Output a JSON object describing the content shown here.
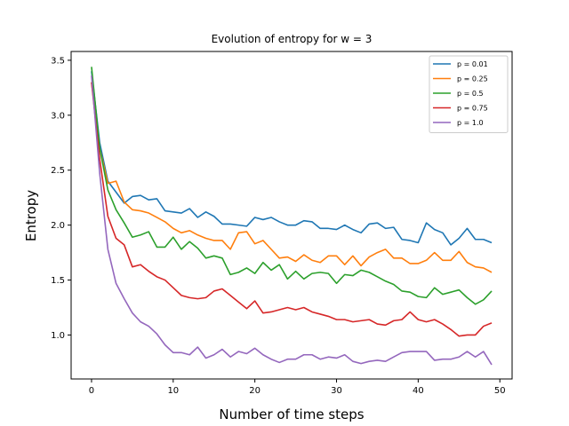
{
  "chart_data": {
    "type": "line",
    "title": "Evolution of entropy for w = 3",
    "xlabel": "Number of time steps",
    "ylabel": "Entropy",
    "xlim": [
      -2.5,
      51.5
    ],
    "ylim": [
      0.6,
      3.58
    ],
    "xticks": [
      0,
      10,
      20,
      30,
      40,
      50
    ],
    "yticks": [
      1.0,
      1.5,
      2.0,
      2.5,
      3.0,
      3.5
    ],
    "grid": false,
    "legend_placement": "top-right",
    "x": [
      0,
      1,
      2,
      3,
      4,
      5,
      6,
      7,
      8,
      9,
      10,
      11,
      12,
      13,
      14,
      15,
      16,
      17,
      18,
      19,
      20,
      21,
      22,
      23,
      24,
      25,
      26,
      27,
      28,
      29,
      30,
      31,
      32,
      33,
      34,
      35,
      36,
      37,
      38,
      39,
      40,
      41,
      42,
      43,
      44,
      45,
      46,
      47,
      48,
      49
    ],
    "series": [
      {
        "name": "p = 0.01",
        "color": "#1f77b4",
        "values": [
          3.4,
          2.75,
          2.4,
          2.3,
          2.2,
          2.26,
          2.27,
          2.23,
          2.24,
          2.13,
          2.12,
          2.11,
          2.15,
          2.07,
          2.12,
          2.08,
          2.01,
          2.01,
          2.0,
          1.99,
          2.07,
          2.05,
          2.07,
          2.03,
          2.0,
          2.0,
          2.04,
          2.03,
          1.97,
          1.97,
          1.96,
          2.0,
          1.96,
          1.93,
          2.01,
          2.02,
          1.97,
          1.98,
          1.87,
          1.86,
          1.84,
          2.02,
          1.96,
          1.93,
          1.82,
          1.88,
          1.97,
          1.87,
          1.87,
          1.84
        ]
      },
      {
        "name": "p = 0.25",
        "color": "#ff7f0e",
        "values": [
          3.3,
          2.7,
          2.38,
          2.4,
          2.21,
          2.14,
          2.13,
          2.11,
          2.07,
          2.03,
          1.97,
          1.93,
          1.95,
          1.91,
          1.88,
          1.86,
          1.86,
          1.78,
          1.93,
          1.94,
          1.83,
          1.86,
          1.78,
          1.7,
          1.71,
          1.67,
          1.73,
          1.68,
          1.66,
          1.72,
          1.72,
          1.64,
          1.72,
          1.63,
          1.71,
          1.75,
          1.78,
          1.7,
          1.7,
          1.65,
          1.65,
          1.68,
          1.75,
          1.68,
          1.68,
          1.76,
          1.66,
          1.62,
          1.61,
          1.57
        ]
      },
      {
        "name": "p = 0.5",
        "color": "#2ca02c",
        "values": [
          3.44,
          2.7,
          2.32,
          2.14,
          2.02,
          1.89,
          1.91,
          1.94,
          1.8,
          1.8,
          1.89,
          1.78,
          1.85,
          1.79,
          1.7,
          1.72,
          1.7,
          1.55,
          1.57,
          1.61,
          1.56,
          1.66,
          1.59,
          1.64,
          1.51,
          1.58,
          1.51,
          1.56,
          1.57,
          1.56,
          1.47,
          1.55,
          1.54,
          1.59,
          1.57,
          1.53,
          1.49,
          1.46,
          1.4,
          1.39,
          1.35,
          1.34,
          1.43,
          1.37,
          1.39,
          1.41,
          1.34,
          1.28,
          1.32,
          1.4
        ]
      },
      {
        "name": "p = 0.75",
        "color": "#d62728",
        "values": [
          3.3,
          2.6,
          2.08,
          1.88,
          1.82,
          1.62,
          1.64,
          1.58,
          1.53,
          1.5,
          1.43,
          1.36,
          1.34,
          1.33,
          1.34,
          1.4,
          1.42,
          1.36,
          1.3,
          1.24,
          1.31,
          1.2,
          1.21,
          1.23,
          1.25,
          1.23,
          1.25,
          1.21,
          1.19,
          1.17,
          1.14,
          1.14,
          1.12,
          1.13,
          1.14,
          1.1,
          1.09,
          1.13,
          1.14,
          1.21,
          1.14,
          1.12,
          1.14,
          1.1,
          1.05,
          0.99,
          1.0,
          1.0,
          1.08,
          1.11
        ]
      },
      {
        "name": "p = 1.0",
        "color": "#9467bd",
        "values": [
          3.36,
          2.47,
          1.78,
          1.47,
          1.33,
          1.2,
          1.12,
          1.08,
          1.01,
          0.91,
          0.84,
          0.84,
          0.82,
          0.89,
          0.79,
          0.82,
          0.87,
          0.8,
          0.85,
          0.83,
          0.88,
          0.82,
          0.78,
          0.75,
          0.78,
          0.78,
          0.82,
          0.82,
          0.78,
          0.8,
          0.79,
          0.82,
          0.76,
          0.74,
          0.76,
          0.77,
          0.76,
          0.8,
          0.84,
          0.85,
          0.85,
          0.85,
          0.77,
          0.78,
          0.78,
          0.8,
          0.85,
          0.8,
          0.85,
          0.73
        ]
      }
    ]
  }
}
